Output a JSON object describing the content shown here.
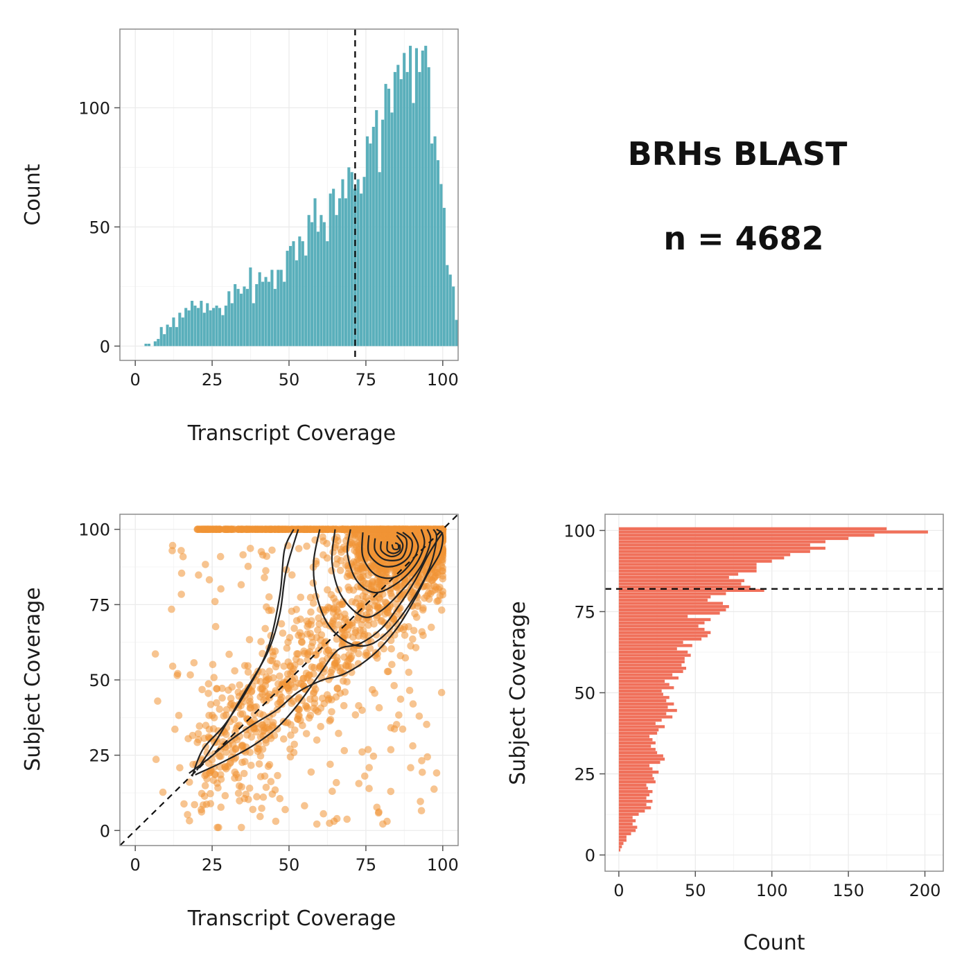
{
  "annotation": {
    "title": "BRHs  BLAST",
    "count_text": "n =  4682"
  },
  "colors": {
    "teal": "#5aafbb",
    "orange": "#f09335",
    "salmon": "#f0705a",
    "grid": "#ebebeb",
    "contour": "#222222",
    "border": "#8c8c8c"
  },
  "chart_data": [
    {
      "type": "bar",
      "name": "transcript-coverage-histogram",
      "xlabel": "Transcript  Coverage",
      "ylabel": "Count",
      "xlim": [
        -5,
        105
      ],
      "ylim": [
        -6,
        133
      ],
      "xticks": [
        0,
        25,
        50,
        75,
        100
      ],
      "yticks": [
        0,
        50,
        100
      ],
      "bin_width": 1,
      "bin_start": 3,
      "counts": [
        1,
        1,
        0,
        2,
        3,
        8,
        5,
        9,
        8,
        12,
        8,
        14,
        12,
        16,
        15,
        19,
        17,
        16,
        19,
        14,
        18,
        15,
        16,
        17,
        16,
        13,
        17,
        23,
        18,
        26,
        24,
        22,
        25,
        24,
        33,
        18,
        26,
        31,
        27,
        29,
        27,
        32,
        24,
        32,
        32,
        27,
        40,
        42,
        44,
        36,
        46,
        44,
        38,
        55,
        52,
        62,
        48,
        55,
        52,
        44,
        64,
        66,
        55,
        62,
        70,
        62,
        75,
        73,
        66,
        70,
        64,
        71,
        88,
        85,
        92,
        99,
        73,
        95,
        110,
        108,
        98,
        115,
        118,
        112,
        123,
        115,
        126,
        102,
        125,
        115,
        124,
        126,
        117,
        85,
        88,
        78,
        68,
        58,
        34,
        30,
        25,
        11
      ],
      "vline": 71.5
    },
    {
      "type": "scatter",
      "name": "coverage-scatter",
      "xlabel": "Transcript  Coverage",
      "ylabel": "Subject  Coverage",
      "xlim": [
        -5,
        105
      ],
      "ylim": [
        -5,
        105
      ],
      "xticks": [
        0,
        25,
        50,
        75,
        100
      ],
      "yticks": [
        0,
        25,
        50,
        75,
        100
      ],
      "point_count": 4682,
      "reference_line": [
        [
          -5,
          -5
        ],
        [
          105,
          105
        ]
      ],
      "contours": [
        [
          [
            17.5,
            19
          ],
          [
            24,
            24
          ],
          [
            31,
            30
          ],
          [
            38,
            35
          ],
          [
            46,
            40
          ],
          [
            53,
            46
          ],
          [
            61,
            50
          ],
          [
            68,
            52
          ],
          [
            77,
            58
          ],
          [
            85,
            67
          ],
          [
            91,
            77
          ],
          [
            95,
            85
          ],
          [
            99,
            92
          ],
          [
            100,
            98
          ],
          [
            98,
            100
          ]
        ],
        [
          [
            18.5,
            18
          ],
          [
            22,
            27
          ],
          [
            29,
            35
          ],
          [
            36,
            46
          ],
          [
            43,
            60
          ],
          [
            47,
            78
          ],
          [
            48.5,
            93
          ],
          [
            51.5,
            100
          ]
        ],
        [
          [
            19.5,
            18.5
          ],
          [
            29,
            23
          ],
          [
            38,
            28
          ],
          [
            46,
            34
          ],
          [
            53,
            42
          ],
          [
            60,
            52
          ],
          [
            66,
            60
          ],
          [
            73,
            62
          ],
          [
            80,
            67
          ],
          [
            86,
            75
          ],
          [
            91,
            83
          ],
          [
            95,
            91
          ],
          [
            98,
            96
          ],
          [
            100,
            99
          ]
        ],
        [
          [
            20,
            20
          ],
          [
            27,
            31
          ],
          [
            35,
            45
          ],
          [
            43,
            59
          ],
          [
            47,
            72
          ],
          [
            49,
            86
          ],
          [
            53,
            100
          ]
        ],
        [
          [
            60,
            100
          ],
          [
            58,
            89
          ],
          [
            59,
            78
          ],
          [
            63,
            68
          ],
          [
            70,
            62
          ],
          [
            77,
            62
          ],
          [
            84,
            68
          ],
          [
            91,
            78
          ],
          [
            96,
            88
          ],
          [
            98,
            97
          ],
          [
            97,
            100
          ]
        ],
        [
          [
            65,
            100
          ],
          [
            64,
            89
          ],
          [
            67,
            78
          ],
          [
            74,
            71
          ],
          [
            80,
            73
          ],
          [
            87,
            80
          ],
          [
            93,
            88
          ],
          [
            96,
            96
          ],
          [
            95,
            100
          ]
        ],
        [
          [
            70,
            100
          ],
          [
            69,
            92
          ],
          [
            72,
            83
          ],
          [
            78,
            79
          ],
          [
            85,
            82
          ],
          [
            91,
            88
          ],
          [
            94,
            95
          ],
          [
            93,
            100
          ]
        ],
        [
          [
            74,
            99
          ],
          [
            74,
            91
          ],
          [
            78,
            85
          ],
          [
            84,
            84
          ],
          [
            89,
            88
          ],
          [
            92,
            94
          ],
          [
            90,
            99
          ]
        ],
        [
          [
            76,
            98
          ],
          [
            76,
            92
          ],
          [
            80,
            88
          ],
          [
            85,
            88
          ],
          [
            89,
            91
          ],
          [
            90,
            96
          ],
          [
            87,
            99
          ]
        ],
        [
          [
            78,
            97
          ],
          [
            78,
            93
          ],
          [
            81,
            90
          ],
          [
            86,
            90
          ],
          [
            88,
            93
          ],
          [
            88,
            97
          ],
          [
            85,
            99
          ]
        ],
        [
          [
            80,
            96
          ],
          [
            80,
            93
          ],
          [
            83,
            91
          ],
          [
            86,
            92
          ],
          [
            87,
            95
          ],
          [
            85,
            98
          ]
        ],
        [
          [
            82,
            96
          ],
          [
            82,
            93
          ],
          [
            84,
            92
          ],
          [
            86,
            93
          ],
          [
            86,
            95
          ]
        ],
        [
          [
            83.5,
            95
          ],
          [
            84,
            93.5
          ],
          [
            85.5,
            93.5
          ],
          [
            85.5,
            95
          ],
          [
            84.5,
            95.5
          ]
        ]
      ]
    },
    {
      "type": "bar",
      "orientation": "horizontal",
      "name": "subject-coverage-histogram",
      "xlabel": "Count",
      "ylabel": "Subject  Coverage",
      "xlim": [
        -9,
        212
      ],
      "ylim": [
        -5,
        105
      ],
      "xticks": [
        0,
        50,
        100,
        150,
        200
      ],
      "yticks": [
        0,
        25,
        50,
        75,
        100
      ],
      "bin_width": 1,
      "bin_start": 1,
      "counts": [
        1,
        2,
        3,
        5,
        5,
        8,
        11,
        12,
        9,
        11,
        9,
        13,
        17,
        21,
        18,
        22,
        18,
        20,
        22,
        19,
        18,
        24,
        23,
        22,
        26,
        22,
        20,
        27,
        30,
        29,
        25,
        24,
        21,
        24,
        22,
        20,
        25,
        26,
        30,
        24,
        28,
        35,
        31,
        38,
        32,
        36,
        31,
        33,
        29,
        28,
        36,
        33,
        30,
        39,
        35,
        42,
        44,
        41,
        43,
        43,
        47,
        45,
        38,
        48,
        42,
        54,
        58,
        60,
        56,
        52,
        56,
        60,
        45,
        66,
        70,
        72,
        68,
        58,
        60,
        70,
        95,
        86,
        80,
        82,
        72,
        78,
        90,
        90,
        90,
        100,
        108,
        112,
        125,
        135,
        125,
        135,
        150,
        167,
        202,
        175
      ],
      "hline": 82
    }
  ]
}
